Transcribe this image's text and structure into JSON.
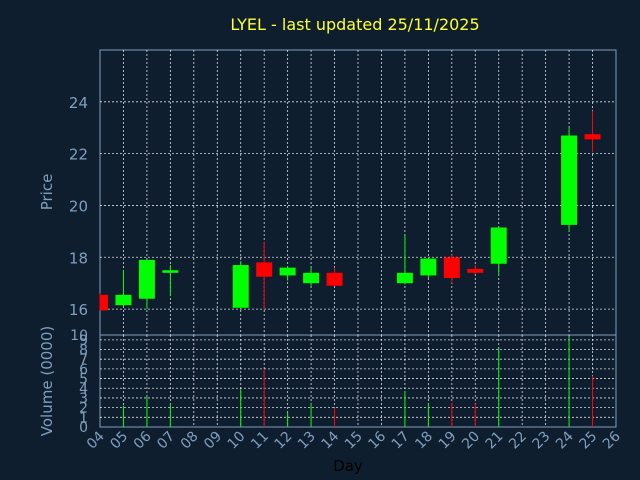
{
  "chart_data": {
    "type": "candlestick",
    "title": "LYEL - last updated 25/11/2025",
    "xlabel": "Day",
    "price_panel": {
      "ylabel": "Price",
      "ylim": [
        15,
        26
      ],
      "yticks": [
        "24",
        "22",
        "20",
        "18",
        "16"
      ],
      "candles": [
        {
          "day": "04",
          "open": 16.55,
          "high": 16.6,
          "low": 15.95,
          "close": 15.95
        },
        {
          "day": "05",
          "open": 16.15,
          "high": 17.5,
          "low": 16.1,
          "close": 16.55
        },
        {
          "day": "06",
          "open": 16.4,
          "high": 17.9,
          "low": 16.0,
          "close": 17.9
        },
        {
          "day": "07",
          "open": 17.4,
          "high": 17.7,
          "low": 16.5,
          "close": 17.5
        },
        {
          "day": "10",
          "open": 16.05,
          "high": 17.85,
          "low": 16.0,
          "close": 17.7
        },
        {
          "day": "11",
          "open": 17.8,
          "high": 18.6,
          "low": 16.0,
          "close": 17.25
        },
        {
          "day": "12",
          "open": 17.3,
          "high": 17.65,
          "low": 17.1,
          "close": 17.6
        },
        {
          "day": "13",
          "open": 17.0,
          "high": 17.6,
          "low": 16.9,
          "close": 17.4
        },
        {
          "day": "14",
          "open": 17.4,
          "high": 17.6,
          "low": 16.9,
          "close": 16.9
        },
        {
          "day": "17",
          "open": 17.0,
          "high": 18.85,
          "low": 16.95,
          "close": 17.4
        },
        {
          "day": "18",
          "open": 17.3,
          "high": 17.95,
          "low": 17.2,
          "close": 17.95
        },
        {
          "day": "19",
          "open": 18.0,
          "high": 18.1,
          "low": 17.0,
          "close": 17.2
        },
        {
          "day": "20",
          "open": 17.55,
          "high": 17.7,
          "low": 17.35,
          "close": 17.4
        },
        {
          "day": "21",
          "open": 17.75,
          "high": 19.15,
          "low": 17.3,
          "close": 19.15
        },
        {
          "day": "24",
          "open": 19.25,
          "high": 23.0,
          "low": 19.0,
          "close": 22.7
        },
        {
          "day": "25",
          "open": 22.75,
          "high": 23.65,
          "low": 22.05,
          "close": 22.55
        }
      ]
    },
    "volume_panel": {
      "ylabel": "Volume (0000)",
      "ylim": [
        0,
        9.5
      ],
      "yticks": [
        "10",
        "9",
        "8",
        "7",
        "6",
        "5",
        "4",
        "3",
        "2",
        "1",
        "0"
      ],
      "volumes": [
        {
          "day": "05",
          "value": 2.2,
          "direction": "up"
        },
        {
          "day": "06",
          "value": 3.1,
          "direction": "up"
        },
        {
          "day": "07",
          "value": 2.4,
          "direction": "up"
        },
        {
          "day": "10",
          "value": 3.9,
          "direction": "up"
        },
        {
          "day": "11",
          "value": 6.0,
          "direction": "down"
        },
        {
          "day": "12",
          "value": 1.5,
          "direction": "up"
        },
        {
          "day": "13",
          "value": 2.5,
          "direction": "up"
        },
        {
          "day": "14",
          "value": 2.0,
          "direction": "down"
        },
        {
          "day": "17",
          "value": 3.7,
          "direction": "up"
        },
        {
          "day": "18",
          "value": 2.4,
          "direction": "up"
        },
        {
          "day": "19",
          "value": 2.5,
          "direction": "down"
        },
        {
          "day": "20",
          "value": 2.4,
          "direction": "down"
        },
        {
          "day": "21",
          "value": 8.1,
          "direction": "up"
        },
        {
          "day": "24",
          "value": 9.3,
          "direction": "up"
        },
        {
          "day": "25",
          "value": 5.3,
          "direction": "down"
        }
      ]
    },
    "x_categories": [
      "04",
      "05",
      "06",
      "07",
      "08",
      "09",
      "10",
      "11",
      "12",
      "13",
      "14",
      "15",
      "16",
      "17",
      "18",
      "19",
      "20",
      "21",
      "22",
      "23",
      "24",
      "25",
      "26"
    ],
    "colors": {
      "background": "#0f1e2e",
      "grid": "#ffffff",
      "axis_text": "#7f9fbf",
      "title": "#ffff33",
      "up": "#00ff00",
      "down": "#ff0000"
    },
    "grid": true
  }
}
